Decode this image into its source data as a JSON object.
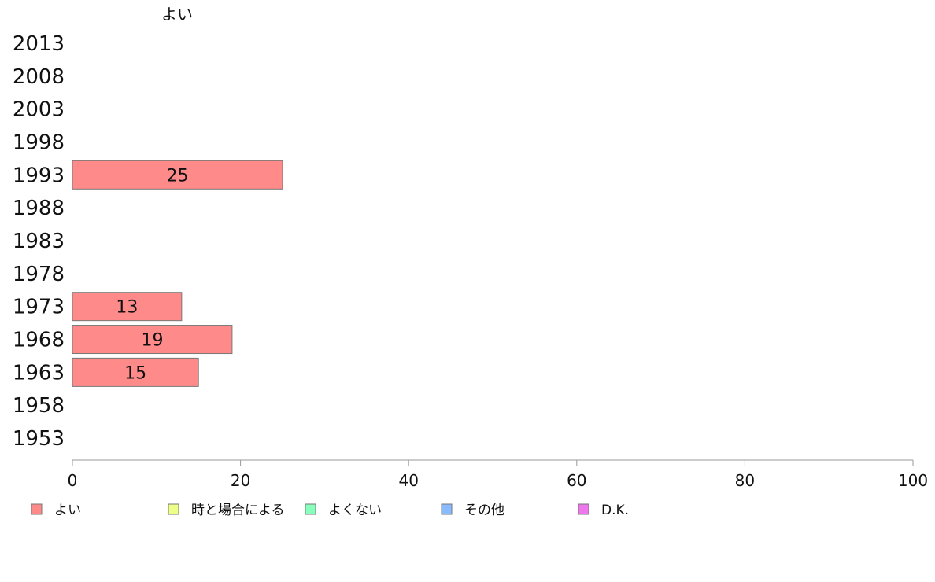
{
  "chart_data": {
    "type": "bar",
    "orientation": "horizontal",
    "top_label": "よい",
    "categories": [
      "2013",
      "2008",
      "2003",
      "1998",
      "1993",
      "1988",
      "1983",
      "1978",
      "1973",
      "1968",
      "1963",
      "1958",
      "1953"
    ],
    "series": [
      {
        "name": "よい",
        "color": "#ff8a8a",
        "values": [
          null,
          null,
          null,
          null,
          25,
          null,
          null,
          null,
          13,
          19,
          15,
          null,
          null
        ]
      }
    ],
    "xlim": [
      0,
      100
    ],
    "xticks": [
      0,
      20,
      40,
      60,
      80,
      100
    ],
    "grid": false,
    "legend": {
      "placement": "bottom-left",
      "items": [
        {
          "label": "よい",
          "color": "#ff8a8a"
        },
        {
          "label": "時と場合による",
          "color": "#eeff88"
        },
        {
          "label": "よくない",
          "color": "#88ffbb"
        },
        {
          "label": "その他",
          "color": "#88bbff"
        },
        {
          "label": "D.K.",
          "color": "#ee77ee"
        }
      ]
    }
  }
}
